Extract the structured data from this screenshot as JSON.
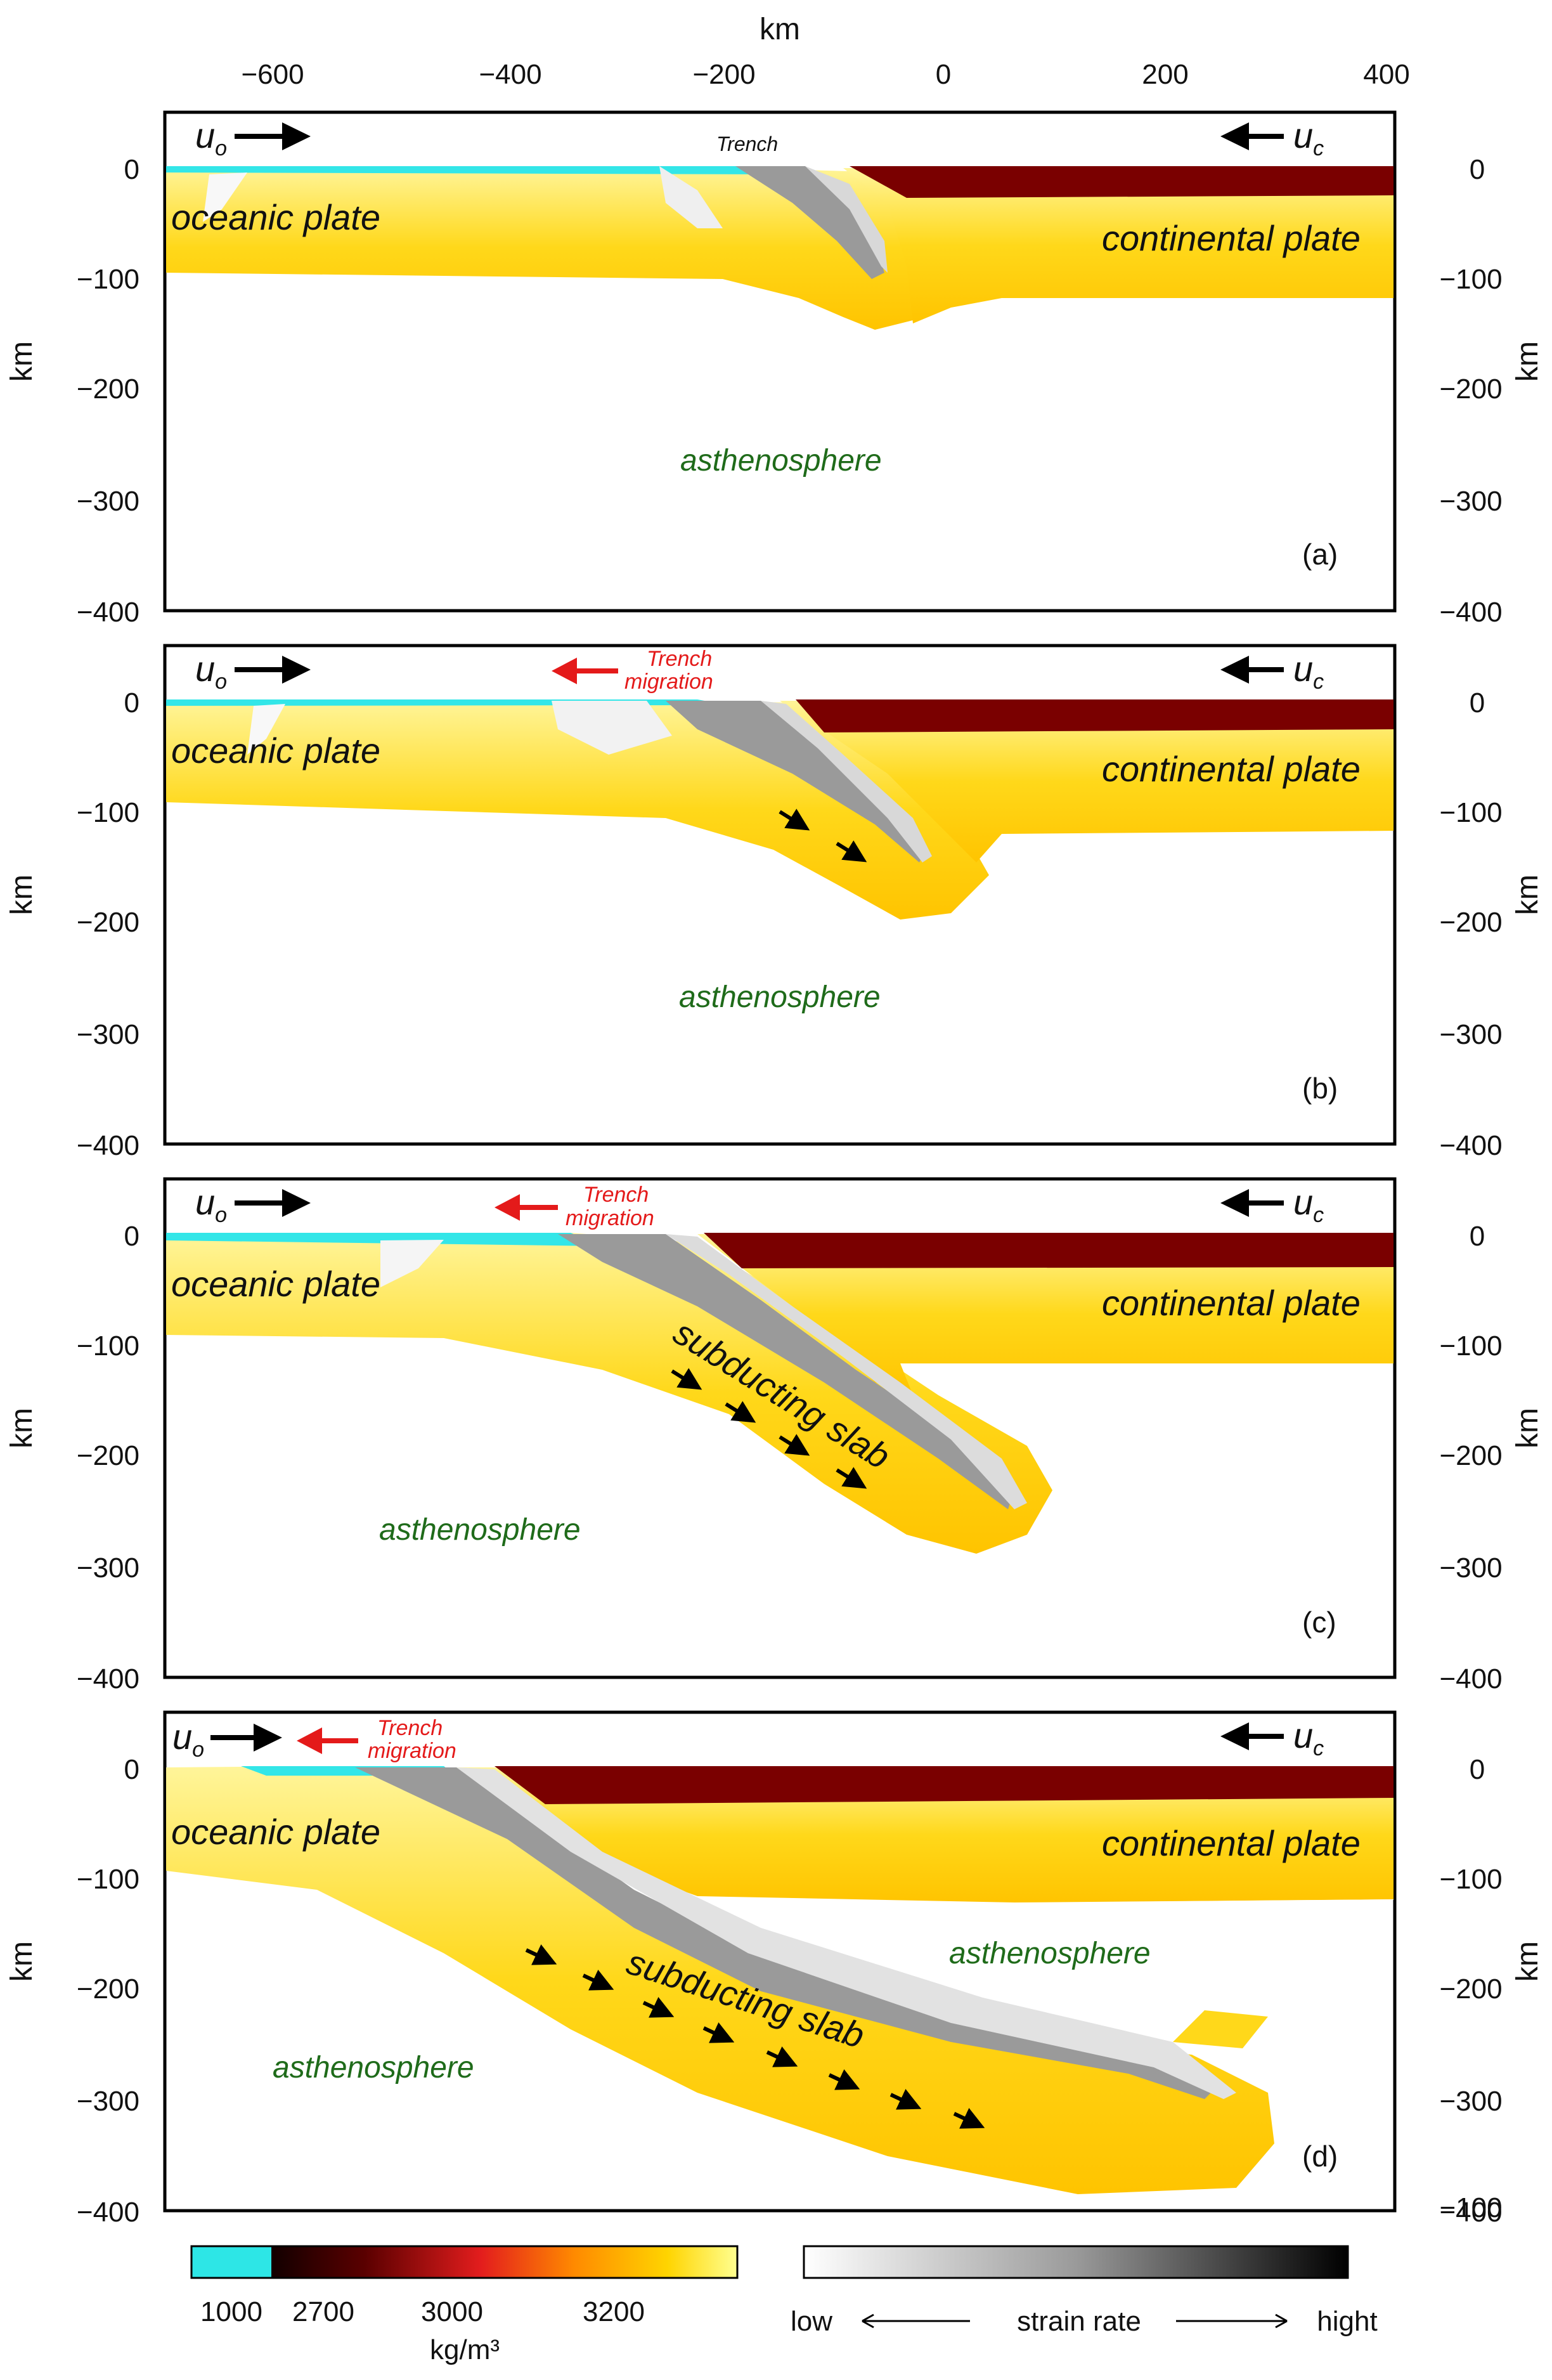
{
  "axes": {
    "top_xlabel": "km",
    "x_ticks": [
      "−600",
      "−400",
      "−200",
      "0",
      "200",
      "400"
    ],
    "y_ticks": [
      "0",
      "−100",
      "−200",
      "−300",
      "−400"
    ],
    "ylabel_left": "km",
    "ylabel_right": "km",
    "extra_right_tick_d": "−100"
  },
  "labels": {
    "oceanic_plate": "oceanic plate",
    "continental_plate": "continental plate",
    "asthenosphere": "asthenosphere",
    "subducting_slab": "subducting slab",
    "trench": "Trench",
    "trench_migration_line1": "Trench",
    "trench_migration_line2": "migration",
    "uo_main": "u",
    "uo_sub": "o",
    "uc_main": "u",
    "uc_sub": "c"
  },
  "panels": [
    {
      "letter": "(a)"
    },
    {
      "letter": "(b)"
    },
    {
      "letter": "(c)"
    },
    {
      "letter": "(d)"
    }
  ],
  "colorbar_density": {
    "ticks": [
      "1000",
      "2700",
      "3000",
      "3200"
    ],
    "unit": "kg/m³",
    "colors": {
      "water": "#2de6e6",
      "crust": "#1a0000",
      "mid": "#e02020",
      "mantle": "#ffd500",
      "light": "#ffffa0"
    }
  },
  "colorbar_strain": {
    "low": "low",
    "title": "strain rate",
    "high": "hight"
  },
  "colors": {
    "water": "#33e6e8",
    "continental_crust": "#7a0000",
    "lithosphere_yellow": "#ffd81a",
    "lithosphere_light": "#fff27a",
    "slab_grey": "#8c8c8c",
    "arrow_red": "#e41a1a",
    "text_green": "#1f6b1a"
  }
}
